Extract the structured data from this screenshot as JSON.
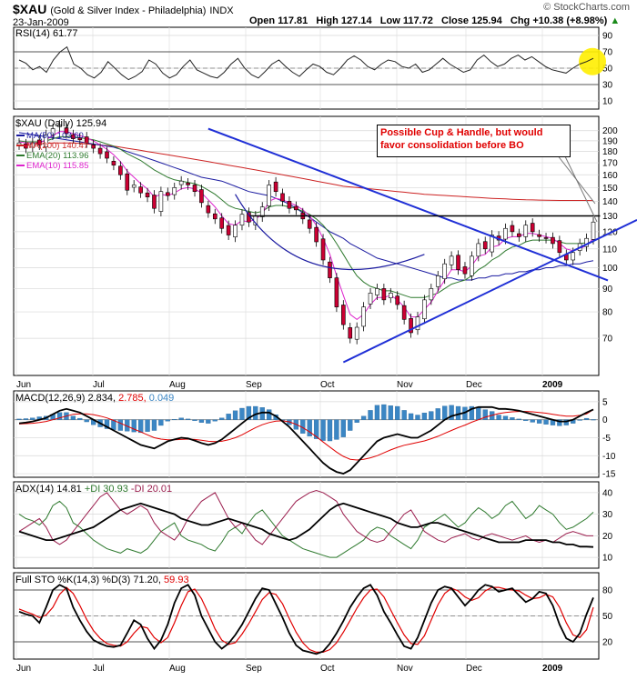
{
  "header": {
    "symbol": "$XAU",
    "description": "(Gold & Silver Index - Philadelphia)",
    "exchange": "INDX",
    "date": "23-Jan-2009",
    "open_label": "Open",
    "open": "117.81",
    "high_label": "High",
    "high": "127.14",
    "low_label": "Low",
    "low": "117.72",
    "close_label": "Close",
    "close": "125.94",
    "chg_label": "Chg",
    "chg": "+10.38 (+8.98%)",
    "arrow": "▲",
    "watermark": "© StockCharts.com"
  },
  "annotation": {
    "line1": "Possible Cup & Handle, but would",
    "line2": "favor consolidation before BO"
  },
  "colors": {
    "price_up": "#ffffff",
    "price_down": "#cc0033",
    "ma50": "#1a1aa0",
    "ma200": "#cc2222",
    "ema20": "#2f7a2f",
    "ema10": "#dd22cc",
    "trend": "#1f2fd6",
    "annotation": "#e00000",
    "highlight": "#ffee00",
    "macd_hist": "#3b86c4",
    "plus_di": "#2f7a2f",
    "minus_di": "#9b1e4e",
    "sto_d": "#e00000"
  },
  "chart_data": [
    {
      "id": "rsi",
      "type": "line",
      "title": "RSI(14) 61.77",
      "ylim": [
        0,
        100
      ],
      "yticks": [
        10,
        30,
        50,
        70,
        90
      ],
      "series": [
        {
          "name": "RSI(14)",
          "values": [
            60,
            56,
            48,
            52,
            45,
            60,
            70,
            76,
            55,
            50,
            42,
            38,
            45,
            58,
            50,
            42,
            36,
            40,
            46,
            60,
            55,
            44,
            38,
            42,
            52,
            60,
            48,
            44,
            40,
            38,
            45,
            55,
            62,
            50,
            42,
            38,
            46,
            55,
            60,
            52,
            45,
            40,
            48,
            55,
            52,
            45,
            42,
            50,
            60,
            65,
            60,
            52,
            48,
            55,
            60,
            58,
            52,
            50,
            55,
            45,
            48,
            55,
            62,
            55,
            50,
            45,
            48,
            60,
            66,
            58,
            52,
            55,
            62,
            66,
            60,
            64,
            58,
            52,
            48,
            46,
            44,
            50,
            55,
            58,
            62
          ]
        }
      ]
    },
    {
      "id": "price",
      "type": "candlestick",
      "title": "$XAU (Daily) 125.94",
      "x_labels": [
        "Jun",
        "Jul",
        "Aug",
        "Sep",
        "Oct",
        "Nov",
        "Dec",
        "2009"
      ],
      "ylim": [
        58,
        215
      ],
      "yticks": [
        70,
        80,
        90,
        100,
        110,
        120,
        130,
        140,
        150,
        160,
        170,
        180,
        190,
        200
      ],
      "legend": [
        {
          "name": "MA(50)",
          "value": "103.60"
        },
        {
          "name": "MA(200)",
          "value": "140.47"
        },
        {
          "name": "EMA(20)",
          "value": "113.96"
        },
        {
          "name": "EMA(10)",
          "value": "115.85"
        }
      ],
      "closes": [
        188,
        183,
        188,
        186,
        196,
        202,
        206,
        197,
        192,
        191,
        188,
        183,
        178,
        174,
        168,
        160,
        148,
        152,
        146,
        143,
        135,
        147,
        144,
        150,
        155,
        152,
        147,
        139,
        132,
        128,
        122,
        118,
        124,
        131,
        126,
        130,
        136,
        152,
        147,
        140,
        135,
        134,
        128,
        122,
        114,
        104,
        95,
        82,
        75,
        70,
        74,
        82,
        88,
        90,
        85,
        88,
        83,
        77,
        72,
        78,
        85,
        90,
        96,
        102,
        106,
        99,
        97,
        106,
        113,
        110,
        118,
        115,
        122,
        120,
        117,
        124,
        120,
        117,
        116,
        113,
        108,
        104,
        108,
        113,
        116,
        126
      ],
      "ma50": [
        198,
        197,
        196,
        195,
        194,
        193,
        192,
        191,
        190,
        189,
        188,
        187,
        186,
        185,
        184,
        182,
        180,
        178,
        176,
        174,
        172,
        170,
        168,
        166,
        164,
        162,
        160,
        158,
        157,
        156,
        155,
        153,
        151,
        149,
        147,
        146,
        145,
        144,
        142,
        140,
        138,
        135,
        132,
        129,
        126,
        123,
        120,
        118,
        116,
        113,
        111,
        109,
        107,
        105,
        104,
        103,
        102,
        101,
        100,
        99,
        98,
        97,
        96,
        95,
        95,
        94,
        94,
        94,
        95,
        95,
        96,
        96,
        97,
        97,
        98,
        98,
        99,
        99,
        100,
        100,
        101,
        101,
        102,
        102,
        103,
        103.6
      ],
      "ma200": [
        185,
        186,
        186.5,
        187,
        187.5,
        188,
        188,
        188,
        188,
        187.5,
        187,
        186.5,
        186,
        185.5,
        185,
        184,
        183,
        182,
        181,
        180,
        179,
        178,
        177,
        176,
        175,
        174,
        173,
        172,
        171,
        170,
        169,
        168,
        167,
        166,
        165,
        164,
        163,
        162,
        161,
        160,
        159,
        158,
        157,
        156,
        155,
        154,
        153,
        152,
        151,
        150.5,
        150,
        149.5,
        149,
        148.5,
        148,
        147.5,
        147,
        146.5,
        146,
        145.5,
        145,
        144.7,
        144.4,
        144.1,
        143.8,
        143.5,
        143.2,
        142.9,
        142.6,
        142.3,
        142,
        141.8,
        141.6,
        141.4,
        141.2,
        141,
        140.9,
        140.8,
        140.7,
        140.6,
        140.5,
        140.5,
        140.5,
        140.5,
        140.5,
        140.47
      ],
      "ema20": [
        190,
        189,
        189,
        189,
        190,
        192,
        194,
        194,
        194,
        193,
        192,
        191,
        189,
        187,
        185,
        182,
        178,
        175,
        172,
        168,
        164,
        161,
        158,
        156,
        155,
        154,
        153,
        151,
        148,
        145,
        141,
        137,
        135,
        134,
        133,
        132,
        133,
        136,
        137,
        137,
        136,
        135,
        133,
        131,
        128,
        124,
        119,
        113,
        107,
        101,
        96,
        93,
        91,
        90,
        89,
        89,
        88,
        87,
        86,
        86,
        86,
        87,
        88,
        90,
        92,
        93,
        94,
        96,
        99,
        101,
        104,
        106,
        109,
        111,
        112,
        114,
        115,
        115,
        115,
        115,
        114,
        113,
        113,
        113,
        113.5,
        113.96
      ],
      "ema10": [
        189,
        188,
        188,
        188,
        191,
        195,
        199,
        199,
        197,
        195,
        193,
        190,
        186,
        182,
        177,
        171,
        163,
        158,
        153,
        149,
        143,
        145,
        144,
        146,
        149,
        150,
        149,
        146,
        141,
        136,
        130,
        125,
        124,
        127,
        126,
        128,
        131,
        140,
        142,
        141,
        139,
        137,
        134,
        130,
        124,
        116,
        107,
        96,
        87,
        79,
        77,
        79,
        83,
        86,
        86,
        87,
        85,
        82,
        78,
        78,
        81,
        84,
        89,
        94,
        99,
        99,
        98,
        101,
        106,
        107,
        111,
        112,
        116,
        117,
        117,
        119,
        119,
        118,
        117,
        116,
        113,
        110,
        109,
        110,
        112,
        115.85
      ],
      "trendlines": [
        {
          "name": "down-trend",
          "from": [
            28,
            202
          ],
          "to": [
            92,
            96
          ]
        },
        {
          "name": "up-trend",
          "from": [
            48,
            62
          ],
          "to": [
            92,
            112
          ]
        },
        {
          "name": "horizontal-resistance",
          "from": [
            34,
            130
          ],
          "to": [
            86,
            130
          ]
        },
        {
          "name": "cup-arc",
          "from": [
            32,
            145
          ],
          "to": [
            60,
            107
          ]
        }
      ]
    },
    {
      "id": "macd",
      "type": "line+histogram",
      "title": "MACD(12,26,9) 2.834, 2.785, 0.049",
      "legend": [
        {
          "name": "MACD",
          "value": "2.834"
        },
        {
          "name": "signal",
          "value": "2.785"
        },
        {
          "name": "histogram",
          "value": "0.049"
        }
      ],
      "ylim": [
        -16,
        8
      ],
      "yticks": [
        -15,
        -10,
        -5,
        0,
        5
      ],
      "macd": [
        -1,
        -0.8,
        -0.5,
        0,
        0.5,
        1.5,
        2.5,
        3,
        2.5,
        2,
        1,
        0,
        -1,
        -2,
        -3,
        -4,
        -5,
        -6,
        -7,
        -7.5,
        -8,
        -7,
        -6,
        -5.5,
        -5,
        -5.2,
        -5.8,
        -6.5,
        -7,
        -6.5,
        -5.5,
        -4,
        -2.5,
        -1,
        0.5,
        1.5,
        2,
        2,
        1,
        -0.5,
        -2,
        -4,
        -6,
        -8,
        -10,
        -12,
        -13.5,
        -14.5,
        -15,
        -14,
        -12,
        -10,
        -8,
        -6,
        -5,
        -4.5,
        -4,
        -4.5,
        -5,
        -5,
        -4,
        -3,
        -1.5,
        0,
        1,
        1.5,
        2,
        3,
        3.5,
        3.5,
        3.5,
        3,
        3,
        2.8,
        2.5,
        2,
        1.5,
        1,
        0.5,
        0,
        -0.5,
        -0.5,
        0,
        1,
        2,
        2.834
      ],
      "signal": [
        -1.2,
        -1.1,
        -1,
        -0.8,
        -0.5,
        0,
        0.5,
        1,
        1.5,
        1.6,
        1.6,
        1.4,
        1,
        0.5,
        -0.2,
        -1,
        -1.8,
        -2.6,
        -3.4,
        -4.2,
        -5,
        -5.4,
        -5.6,
        -5.6,
        -5.5,
        -5.4,
        -5.5,
        -5.7,
        -6,
        -6.1,
        -6,
        -5.6,
        -5,
        -4.2,
        -3.2,
        -2.2,
        -1.4,
        -0.8,
        -0.4,
        -0.3,
        -0.6,
        -1.3,
        -2.2,
        -3.4,
        -4.7,
        -6.2,
        -7.6,
        -9,
        -10.2,
        -11,
        -11.2,
        -11,
        -10.6,
        -10,
        -9.2,
        -8.4,
        -7.7,
        -7.1,
        -6.7,
        -6.3,
        -5.9,
        -5.3,
        -4.6,
        -3.8,
        -3,
        -2.2,
        -1.5,
        -0.7,
        0,
        0.7,
        1.2,
        1.7,
        2,
        2.2,
        2.3,
        2.3,
        2.2,
        2,
        1.8,
        1.5,
        1.2,
        1,
        1,
        1.2,
        1.6,
        2.785
      ]
    },
    {
      "id": "adx",
      "type": "line",
      "title": "ADX(14) 14.81 +DI 30.93 -DI 20.01",
      "legend": [
        {
          "name": "ADX(14)",
          "value": "14.81"
        },
        {
          "name": "+DI",
          "value": "30.93"
        },
        {
          "name": "-DI",
          "value": "20.01"
        }
      ],
      "ylim": [
        5,
        45
      ],
      "yticks": [
        10,
        20,
        30,
        40
      ],
      "adx": [
        22,
        21,
        20,
        19,
        18,
        18,
        19,
        20,
        21,
        22,
        23,
        24,
        26,
        28,
        30,
        32,
        33,
        34,
        35,
        34,
        33,
        32,
        31,
        30,
        28,
        27,
        26,
        25,
        25,
        26,
        27,
        28,
        27,
        26,
        25,
        24,
        23,
        21,
        20,
        19,
        18,
        19,
        21,
        23,
        26,
        29,
        32,
        34,
        35,
        34,
        33,
        32,
        31,
        30,
        29,
        28,
        26,
        25,
        24,
        24,
        25,
        26,
        26,
        25,
        24,
        23,
        22,
        21,
        20,
        19,
        18,
        17,
        17,
        17,
        17,
        18,
        18,
        18,
        18,
        17,
        17,
        16,
        16,
        15,
        15,
        14.81
      ],
      "plus_di": [
        30,
        28,
        27,
        25,
        28,
        34,
        36,
        33,
        26,
        24,
        21,
        18,
        16,
        14,
        13,
        12,
        14,
        13,
        12,
        14,
        18,
        22,
        24,
        26,
        20,
        18,
        17,
        16,
        14,
        13,
        17,
        22,
        24,
        21,
        26,
        30,
        32,
        28,
        24,
        20,
        18,
        16,
        14,
        13,
        12,
        11,
        10,
        10,
        12,
        14,
        16,
        18,
        22,
        24,
        23,
        20,
        18,
        16,
        14,
        18,
        24,
        26,
        28,
        30,
        27,
        24,
        26,
        30,
        33,
        31,
        28,
        30,
        34,
        36,
        32,
        28,
        30,
        34,
        32,
        30,
        26,
        23,
        24,
        26,
        28,
        30.93
      ],
      "minus_di": [
        22,
        24,
        26,
        28,
        24,
        18,
        16,
        18,
        22,
        26,
        30,
        34,
        38,
        40,
        36,
        32,
        30,
        32,
        34,
        32,
        26,
        22,
        20,
        18,
        22,
        28,
        32,
        36,
        38,
        40,
        34,
        28,
        24,
        26,
        22,
        18,
        16,
        20,
        24,
        28,
        32,
        36,
        38,
        40,
        41,
        40,
        38,
        36,
        30,
        26,
        22,
        20,
        18,
        17,
        18,
        22,
        26,
        30,
        32,
        27,
        22,
        20,
        18,
        17,
        19,
        20,
        21,
        19,
        18,
        20,
        21,
        20,
        19,
        18,
        19,
        20,
        18,
        17,
        18,
        17,
        19,
        21,
        22,
        21,
        20,
        20.01
      ]
    },
    {
      "id": "sto",
      "type": "line",
      "title": "Full STO %K(14,3) %D(3) 71.20, 59.93",
      "legend": [
        {
          "name": "%K",
          "value": "71.20"
        },
        {
          "name": "%D",
          "value": "59.93"
        }
      ],
      "ylim": [
        0,
        100
      ],
      "yticks": [
        20,
        50,
        80
      ],
      "k": [
        55,
        52,
        50,
        42,
        60,
        80,
        86,
        82,
        60,
        45,
        32,
        22,
        18,
        15,
        14,
        16,
        30,
        45,
        40,
        24,
        12,
        22,
        40,
        65,
        82,
        86,
        74,
        50,
        35,
        20,
        12,
        18,
        28,
        40,
        55,
        70,
        82,
        80,
        64,
        48,
        30,
        16,
        10,
        8,
        6,
        9,
        18,
        30,
        44,
        60,
        72,
        82,
        86,
        74,
        55,
        42,
        28,
        15,
        12,
        25,
        45,
        65,
        80,
        84,
        82,
        72,
        62,
        70,
        80,
        86,
        84,
        78,
        80,
        82,
        74,
        66,
        70,
        78,
        76,
        62,
        40,
        24,
        20,
        30,
        52,
        71.2
      ],
      "d": [
        58,
        55,
        52,
        48,
        51,
        60,
        75,
        83,
        76,
        62,
        46,
        33,
        24,
        18,
        16,
        15,
        20,
        30,
        38,
        36,
        25,
        19,
        25,
        42,
        62,
        78,
        81,
        70,
        53,
        35,
        22,
        17,
        19,
        29,
        41,
        55,
        69,
        77,
        75,
        64,
        47,
        31,
        19,
        11,
        8,
        8,
        11,
        19,
        31,
        45,
        59,
        71,
        80,
        81,
        72,
        57,
        42,
        28,
        18,
        17,
        27,
        45,
        63,
        76,
        82,
        79,
        72,
        68,
        71,
        79,
        83,
        83,
        81,
        80,
        79,
        74,
        70,
        71,
        75,
        72,
        60,
        42,
        28,
        25,
        34,
        59.93
      ]
    }
  ]
}
